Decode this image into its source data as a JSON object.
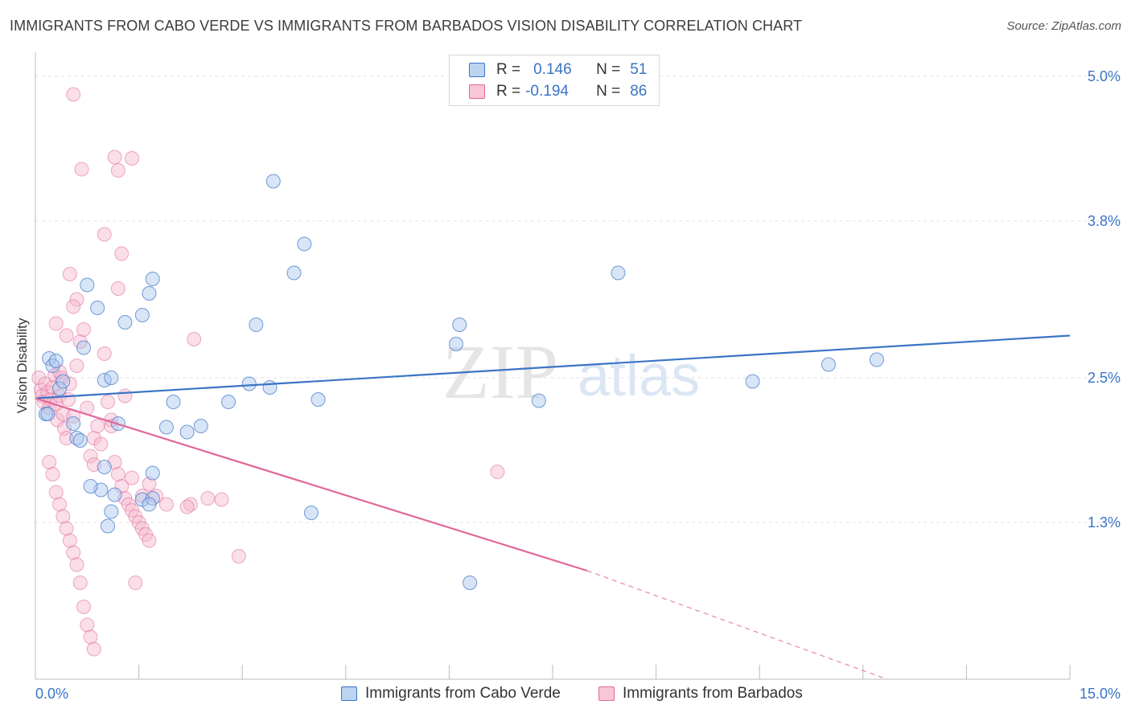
{
  "title": "IMMIGRANTS FROM CABO VERDE VS IMMIGRANTS FROM BARBADOS VISION DISABILITY CORRELATION CHART",
  "source": "Source: ZipAtlas.com",
  "watermark": {
    "zip": "ZIP",
    "atlas": "atlas"
  },
  "colors": {
    "blue": "#3b74c6",
    "blue_fill": "#a9c6ee",
    "pink": "#e0679a",
    "pink_fill": "#f5b6cc",
    "grid": "#e2e2e2",
    "axis_text": "#3b74c6"
  },
  "legend": {
    "rows": [
      {
        "r_label": "R =",
        "r_value": "0.146",
        "n_label": "N =",
        "n_value": "51"
      },
      {
        "r_label": "R =",
        "r_value": "-0.194",
        "n_label": "N =",
        "n_value": "86"
      }
    ]
  },
  "chart_data": {
    "type": "scatter",
    "xlabel": "",
    "ylabel": "Vision Disability",
    "xlim": [
      0,
      15
    ],
    "ylim": [
      0,
      5.2
    ],
    "x_tick_labels": [
      "0.0%",
      "15.0%"
    ],
    "y_ticks": [
      1.3,
      2.5,
      3.8,
      5.0
    ],
    "y_tick_labels": [
      "1.3%",
      "2.5%",
      "3.8%",
      "5.0%"
    ],
    "grid": true,
    "legend_position": "bottom-center",
    "series": [
      {
        "name": "Immigrants from Cabo Verde",
        "color": "#3b74c6",
        "trend": {
          "x0": 0.0,
          "y0": 2.33,
          "x1": 15.0,
          "y1": 2.85
        },
        "points": [
          [
            0.2,
            2.66
          ],
          [
            0.25,
            2.6
          ],
          [
            0.3,
            2.64
          ],
          [
            0.35,
            2.41
          ],
          [
            0.4,
            2.47
          ],
          [
            0.15,
            2.2
          ],
          [
            0.18,
            2.2
          ],
          [
            0.55,
            2.12
          ],
          [
            0.6,
            2.0
          ],
          [
            0.65,
            1.98
          ],
          [
            0.7,
            2.75
          ],
          [
            0.9,
            3.08
          ],
          [
            0.75,
            3.27
          ],
          [
            1.0,
            2.48
          ],
          [
            1.1,
            2.5
          ],
          [
            1.2,
            2.12
          ],
          [
            1.3,
            2.96
          ],
          [
            1.55,
            3.02
          ],
          [
            1.65,
            3.2
          ],
          [
            1.7,
            3.32
          ],
          [
            1.9,
            2.09
          ],
          [
            2.0,
            2.3
          ],
          [
            2.2,
            2.05
          ],
          [
            2.4,
            2.1
          ],
          [
            2.8,
            2.3
          ],
          [
            3.1,
            2.45
          ],
          [
            3.2,
            2.94
          ],
          [
            3.4,
            2.42
          ],
          [
            3.45,
            4.13
          ],
          [
            3.75,
            3.37
          ],
          [
            3.9,
            3.61
          ],
          [
            4.1,
            2.32
          ],
          [
            4.0,
            1.38
          ],
          [
            6.1,
            2.78
          ],
          [
            6.15,
            2.94
          ],
          [
            6.3,
            0.8
          ],
          [
            7.3,
            2.31
          ],
          [
            8.45,
            3.37
          ],
          [
            10.4,
            2.47
          ],
          [
            11.5,
            2.61
          ],
          [
            12.2,
            2.65
          ],
          [
            1.0,
            1.76
          ],
          [
            1.15,
            1.53
          ],
          [
            1.7,
            1.71
          ],
          [
            1.55,
            1.49
          ],
          [
            1.7,
            1.5
          ],
          [
            1.05,
            1.27
          ],
          [
            1.1,
            1.39
          ],
          [
            0.95,
            1.57
          ],
          [
            0.8,
            1.6
          ],
          [
            1.65,
            1.45
          ]
        ]
      },
      {
        "name": "Immigrants from Barbados",
        "color": "#e0679a",
        "trend": {
          "x0": 0.0,
          "y0": 2.33,
          "x1": 8.0,
          "y1": 0.9
        },
        "trend_dashed": {
          "x0": 8.0,
          "y0": 0.9,
          "x1": 12.3,
          "y1": 0.01
        },
        "points": [
          [
            0.05,
            2.5
          ],
          [
            0.08,
            2.4
          ],
          [
            0.1,
            2.35
          ],
          [
            0.12,
            2.3
          ],
          [
            0.14,
            2.45
          ],
          [
            0.18,
            2.38
          ],
          [
            0.2,
            2.25
          ],
          [
            0.22,
            2.32
          ],
          [
            0.25,
            2.42
          ],
          [
            0.28,
            2.52
          ],
          [
            0.3,
            2.28
          ],
          [
            0.32,
            2.15
          ],
          [
            0.35,
            2.35
          ],
          [
            0.38,
            2.5
          ],
          [
            0.4,
            2.2
          ],
          [
            0.42,
            2.08
          ],
          [
            0.45,
            2.0
          ],
          [
            0.48,
            2.32
          ],
          [
            0.5,
            2.45
          ],
          [
            0.55,
            2.18
          ],
          [
            0.6,
            2.6
          ],
          [
            0.65,
            2.8
          ],
          [
            0.7,
            2.9
          ],
          [
            0.75,
            2.25
          ],
          [
            0.8,
            1.85
          ],
          [
            0.85,
            2.0
          ],
          [
            0.9,
            2.1
          ],
          [
            0.95,
            1.95
          ],
          [
            1.0,
            2.7
          ],
          [
            1.05,
            2.3
          ],
          [
            1.1,
            2.15
          ],
          [
            1.15,
            1.8
          ],
          [
            1.2,
            1.7
          ],
          [
            1.25,
            1.6
          ],
          [
            1.3,
            1.5
          ],
          [
            1.35,
            1.45
          ],
          [
            1.4,
            1.4
          ],
          [
            1.45,
            1.35
          ],
          [
            1.5,
            1.3
          ],
          [
            1.55,
            1.25
          ],
          [
            1.6,
            1.2
          ],
          [
            1.65,
            1.15
          ],
          [
            0.2,
            1.8
          ],
          [
            0.25,
            1.7
          ],
          [
            0.3,
            1.55
          ],
          [
            0.35,
            1.45
          ],
          [
            0.4,
            1.35
          ],
          [
            0.45,
            1.25
          ],
          [
            0.5,
            1.15
          ],
          [
            0.55,
            1.05
          ],
          [
            0.6,
            0.95
          ],
          [
            0.65,
            0.8
          ],
          [
            0.7,
            0.6
          ],
          [
            0.75,
            0.45
          ],
          [
            0.8,
            0.35
          ],
          [
            0.85,
            0.25
          ],
          [
            0.55,
            4.85
          ],
          [
            0.67,
            4.23
          ],
          [
            1.15,
            4.33
          ],
          [
            1.2,
            4.22
          ],
          [
            1.4,
            4.32
          ],
          [
            1.0,
            3.69
          ],
          [
            1.2,
            3.24
          ],
          [
            1.25,
            3.53
          ],
          [
            0.5,
            3.36
          ],
          [
            0.6,
            3.15
          ],
          [
            0.55,
            3.09
          ],
          [
            0.3,
            2.95
          ],
          [
            0.35,
            2.55
          ],
          [
            0.45,
            2.85
          ],
          [
            2.3,
            2.82
          ],
          [
            2.25,
            1.45
          ],
          [
            2.7,
            1.49
          ],
          [
            2.95,
            1.02
          ],
          [
            1.45,
            0.8
          ],
          [
            0.85,
            1.78
          ],
          [
            1.4,
            1.67
          ],
          [
            1.55,
            1.52
          ],
          [
            1.65,
            1.62
          ],
          [
            1.75,
            1.52
          ],
          [
            2.2,
            1.43
          ],
          [
            2.5,
            1.5
          ],
          [
            6.7,
            1.72
          ],
          [
            1.3,
            2.35
          ],
          [
            1.1,
            2.1
          ],
          [
            1.9,
            1.45
          ]
        ]
      }
    ]
  }
}
